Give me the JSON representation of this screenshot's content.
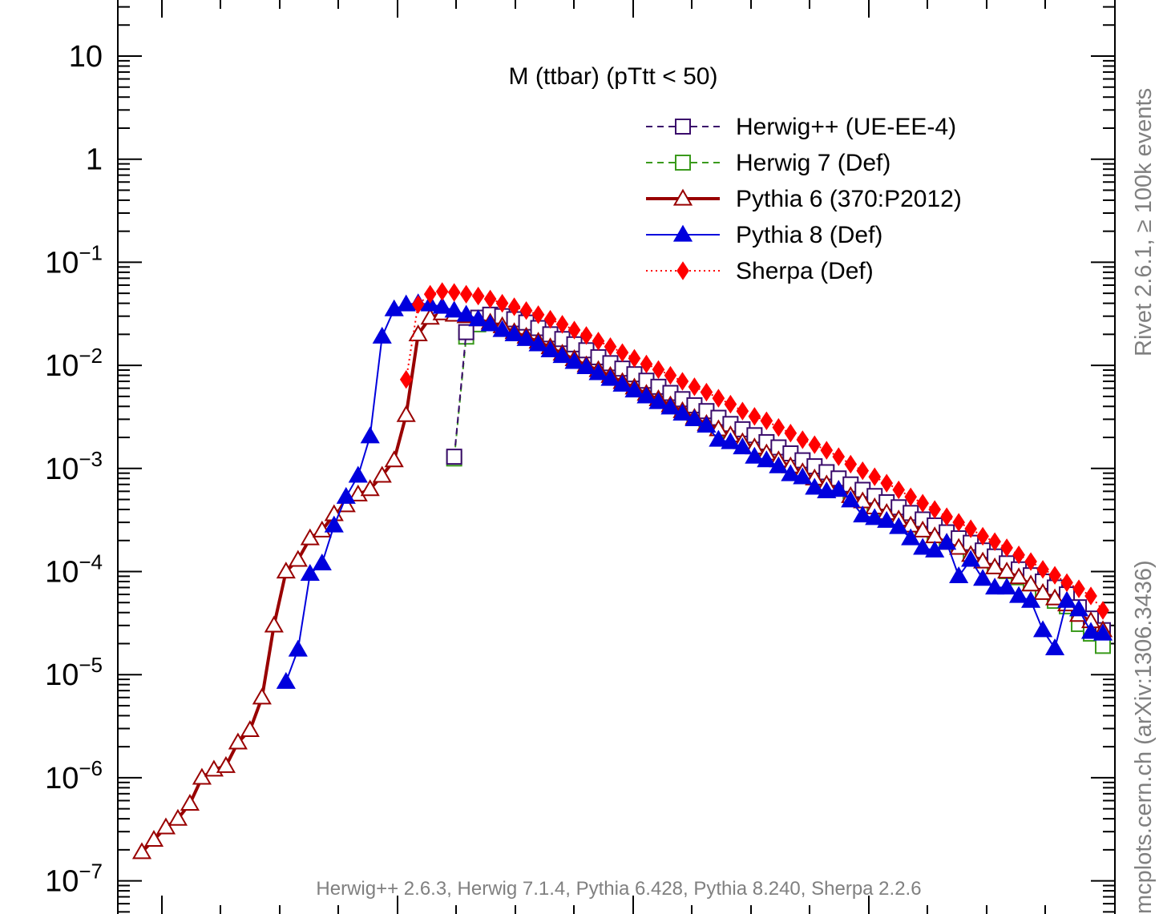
{
  "chart_data": {
    "type": "line",
    "title": "M (ttbar) (pTtt < 50)",
    "yscale": "log",
    "ylim": [
      6e-08,
      20
    ],
    "xlim": [
      0,
      41.5
    ],
    "y_tick_labels": [
      {
        "mant": "10",
        "exp": "",
        "value": 10
      },
      {
        "mant": "1",
        "exp": "",
        "value": 1
      },
      {
        "mant": "10",
        "exp": "−1",
        "value": 0.1
      },
      {
        "mant": "10",
        "exp": "−2",
        "value": 0.01
      },
      {
        "mant": "10",
        "exp": "−3",
        "value": 0.001
      },
      {
        "mant": "10",
        "exp": "−4",
        "value": 0.0001
      },
      {
        "mant": "10",
        "exp": "−5",
        "value": 1e-05
      },
      {
        "mant": "10",
        "exp": "−6",
        "value": 1e-06
      },
      {
        "mant": "10",
        "exp": "−7",
        "value": 1e-07
      }
    ],
    "legend_position": "top-right",
    "series": [
      {
        "name": "Herwig++ (UE-EE-4)",
        "color": "#3a0b6b",
        "dash": "8,6",
        "width": 2,
        "marker": "square-open",
        "x": [
          14.0,
          14.5,
          15.0,
          15.5,
          16.0,
          16.5,
          17.0,
          17.5,
          18.0,
          18.5,
          19.0,
          19.5,
          20.0,
          20.5,
          21.0,
          21.5,
          22.0,
          22.5,
          23.0,
          23.5,
          24.0,
          24.5,
          25.0,
          25.5,
          26.0,
          26.5,
          27.0,
          27.5,
          28.0,
          28.5,
          29.0,
          29.5,
          30.0,
          30.5,
          31.0,
          31.5,
          32.0,
          32.5,
          33.0,
          33.5,
          34.0,
          34.5,
          35.0,
          35.5,
          36.0,
          36.5,
          37.0,
          37.5,
          38.0,
          38.5,
          39.0,
          39.5,
          40.0,
          40.5,
          41.0
        ],
        "y": [
          0.0013,
          0.021,
          0.029,
          0.031,
          0.03,
          0.028,
          0.026,
          0.023,
          0.02,
          0.018,
          0.016,
          0.014,
          0.012,
          0.0105,
          0.0093,
          0.0082,
          0.0071,
          0.0062,
          0.0054,
          0.0047,
          0.0041,
          0.0036,
          0.0031,
          0.0027,
          0.0024,
          0.0021,
          0.0018,
          0.0016,
          0.0014,
          0.0012,
          0.00105,
          0.00092,
          0.0008,
          0.0007,
          0.00062,
          0.00054,
          0.00047,
          0.00042,
          0.00037,
          0.00032,
          0.00028,
          0.00024,
          0.00021,
          0.00019,
          0.00016,
          0.00014,
          0.00012,
          0.000105,
          9.2e-05,
          8e-05,
          7e-05,
          6e-05,
          4.5e-05,
          3.5e-05,
          2.7e-05
        ]
      },
      {
        "name": "Herwig 7 (Def)",
        "color": "#3a9a1c",
        "dash": "8,6",
        "width": 2,
        "marker": "square-open",
        "x": [
          14.0,
          14.5,
          15.0,
          15.5,
          16.0,
          16.5,
          17.0,
          17.5,
          18.0,
          18.5,
          19.0,
          19.5,
          20.0,
          20.5,
          21.0,
          21.5,
          22.0,
          22.5,
          23.0,
          23.5,
          24.0,
          24.5,
          25.0,
          25.5,
          26.0,
          26.5,
          27.0,
          27.5,
          28.0,
          28.5,
          29.0,
          29.5,
          30.0,
          30.5,
          31.0,
          31.5,
          32.0,
          32.5,
          33.0,
          33.5,
          34.0,
          34.5,
          35.0,
          35.5,
          36.0,
          36.5,
          37.0,
          37.5,
          38.0,
          38.5,
          39.0,
          39.5,
          40.0,
          40.5,
          41.0
        ],
        "y": [
          0.00125,
          0.019,
          0.025,
          0.026,
          0.025,
          0.023,
          0.021,
          0.019,
          0.017,
          0.015,
          0.013,
          0.0115,
          0.01,
          0.0088,
          0.0077,
          0.0068,
          0.0059,
          0.0052,
          0.0045,
          0.0039,
          0.0034,
          0.003,
          0.0026,
          0.0023,
          0.002,
          0.00175,
          0.00153,
          0.00134,
          0.00117,
          0.00102,
          0.0009,
          0.00078,
          0.00068,
          0.0006,
          0.00052,
          0.00046,
          0.0004,
          0.00035,
          0.00031,
          0.00027,
          0.00023,
          0.0002,
          0.000175,
          0.000153,
          0.000133,
          0.000116,
          0.000101,
          8.8e-05,
          7.7e-05,
          6.7e-05,
          5.2e-05,
          4.6e-05,
          3.1e-05,
          2.5e-05,
          1.9e-05
        ]
      },
      {
        "name": "Pythia 6 (370:P2012)",
        "color": "#990000",
        "dash": "",
        "width": 4,
        "marker": "triangle-open",
        "x": [
          1.0,
          1.5,
          2.0,
          2.5,
          3.0,
          3.5,
          4.0,
          4.5,
          5.0,
          5.5,
          6.0,
          6.5,
          7.0,
          7.5,
          8.0,
          8.5,
          9.0,
          9.5,
          10.0,
          10.5,
          11.0,
          11.5,
          12.0,
          12.5,
          13.0,
          13.5,
          14.0,
          14.5,
          15.0,
          15.5,
          16.0,
          16.5,
          17.0,
          17.5,
          18.0,
          18.5,
          19.0,
          19.5,
          20.0,
          20.5,
          21.0,
          21.5,
          22.0,
          22.5,
          23.0,
          23.5,
          24.0,
          24.5,
          25.0,
          25.5,
          26.0,
          26.5,
          27.0,
          27.5,
          28.0,
          28.5,
          29.0,
          29.5,
          30.0,
          30.5,
          31.0,
          31.5,
          32.0,
          32.5,
          33.0,
          33.5,
          34.0,
          34.5,
          35.0,
          35.5,
          36.0,
          36.5,
          37.0,
          37.5,
          38.0,
          38.5,
          39.0,
          39.5,
          40.0,
          40.5,
          41.0
        ],
        "y": [
          1.9e-07,
          2.5e-07,
          3.3e-07,
          4e-07,
          5.6e-07,
          1e-06,
          1.2e-06,
          1.3e-06,
          2.2e-06,
          2.9e-06,
          6e-06,
          3e-05,
          0.0001,
          0.00013,
          0.00021,
          0.00025,
          0.00036,
          0.00044,
          0.00056,
          0.00063,
          0.00085,
          0.0012,
          0.0033,
          0.02,
          0.029,
          0.032,
          0.031,
          0.03,
          0.028,
          0.026,
          0.024,
          0.021,
          0.019,
          0.017,
          0.015,
          0.013,
          0.0115,
          0.01,
          0.009,
          0.0079,
          0.0069,
          0.0061,
          0.0053,
          0.0047,
          0.0041,
          0.0036,
          0.0031,
          0.0027,
          0.0024,
          0.0021,
          0.0018,
          0.0016,
          0.0014,
          0.0012,
          0.00105,
          0.00092,
          0.0008,
          0.0007,
          0.00062,
          0.00054,
          0.00048,
          0.00042,
          0.00037,
          0.00032,
          0.00028,
          0.00025,
          0.00022,
          0.00019,
          0.00017,
          0.000145,
          0.000125,
          0.00011,
          0.0001,
          8.8e-05,
          7.5e-05,
          6.2e-05,
          5.5e-05,
          4.8e-05,
          3.8e-05,
          3.3e-05,
          2.7e-05
        ]
      },
      {
        "name": "Pythia 8 (Def)",
        "color": "#0000dd",
        "dash": "",
        "width": 2,
        "marker": "triangle-filled",
        "x": [
          7.0,
          7.5,
          8.0,
          8.5,
          9.0,
          9.5,
          10.0,
          10.5,
          11.0,
          11.5,
          12.0,
          12.5,
          13.0,
          13.5,
          14.0,
          14.5,
          15.0,
          15.5,
          16.0,
          16.5,
          17.0,
          17.5,
          18.0,
          18.5,
          19.0,
          19.5,
          20.0,
          20.5,
          21.0,
          21.5,
          22.0,
          22.5,
          23.0,
          23.5,
          24.0,
          24.5,
          25.0,
          25.5,
          26.0,
          26.5,
          27.0,
          27.5,
          28.0,
          28.5,
          29.0,
          29.5,
          30.0,
          30.5,
          31.0,
          31.5,
          32.0,
          32.5,
          33.0,
          33.5,
          34.0,
          34.5,
          35.0,
          35.5,
          36.0,
          36.5,
          37.0,
          37.5,
          38.0,
          38.5,
          39.0,
          39.5,
          40.0,
          40.5,
          41.0
        ],
        "y": [
          8.5e-06,
          1.75e-05,
          9.5e-05,
          0.00012,
          0.00028,
          0.00053,
          0.00085,
          0.00205,
          0.019,
          0.035,
          0.039,
          0.04,
          0.039,
          0.037,
          0.034,
          0.031,
          0.028,
          0.025,
          0.022,
          0.02,
          0.018,
          0.016,
          0.014,
          0.0123,
          0.0108,
          0.0096,
          0.0084,
          0.0074,
          0.0065,
          0.0057,
          0.005,
          0.0044,
          0.0039,
          0.0034,
          0.003,
          0.0026,
          0.0019,
          0.0018,
          0.0016,
          0.0013,
          0.0012,
          0.00105,
          0.00088,
          0.00082,
          0.00065,
          0.0006,
          0.00062,
          0.00049,
          0.00035,
          0.00033,
          0.00031,
          0.00027,
          0.00021,
          0.00017,
          0.00016,
          0.00019,
          9e-05,
          0.00013,
          8.5e-05,
          7e-05,
          7e-05,
          5.8e-05,
          5.2e-05,
          2.7e-05,
          1.8e-05,
          5.2e-05,
          4.3e-05,
          2.6e-05,
          2.5e-05
        ]
      },
      {
        "name": "Sherpa (Def)",
        "color": "#ff0000",
        "dash": "2,4",
        "width": 2,
        "marker": "diamond-filled",
        "x": [
          12.0,
          12.5,
          13.0,
          13.5,
          14.0,
          14.5,
          15.0,
          15.5,
          16.0,
          16.5,
          17.0,
          17.5,
          18.0,
          18.5,
          19.0,
          19.5,
          20.0,
          20.5,
          21.0,
          21.5,
          22.0,
          22.5,
          23.0,
          23.5,
          24.0,
          24.5,
          25.0,
          25.5,
          26.0,
          26.5,
          27.0,
          27.5,
          28.0,
          28.5,
          29.0,
          29.5,
          30.0,
          30.5,
          31.0,
          31.5,
          32.0,
          32.5,
          33.0,
          33.5,
          34.0,
          34.5,
          35.0,
          35.5,
          36.0,
          36.5,
          37.0,
          37.5,
          38.0,
          38.5,
          39.0,
          39.5,
          40.0,
          40.5,
          41.0
        ],
        "y": [
          0.0073,
          0.039,
          0.049,
          0.052,
          0.051,
          0.049,
          0.047,
          0.044,
          0.04,
          0.037,
          0.034,
          0.031,
          0.028,
          0.025,
          0.022,
          0.0195,
          0.0172,
          0.0152,
          0.0133,
          0.0117,
          0.0103,
          0.0091,
          0.008,
          0.007,
          0.0062,
          0.0055,
          0.0048,
          0.0042,
          0.0036,
          0.0032,
          0.0029,
          0.0025,
          0.0022,
          0.0019,
          0.0017,
          0.0015,
          0.0013,
          0.0011,
          0.00095,
          0.00083,
          0.00072,
          0.00062,
          0.00053,
          0.00046,
          0.0004,
          0.00034,
          0.0003,
          0.00026,
          0.00022,
          0.000195,
          0.00017,
          0.000145,
          0.000125,
          0.000105,
          9.2e-05,
          7.8e-05,
          6.8e-05,
          5.8e-05,
          4.2e-05
        ]
      }
    ],
    "annotations": {
      "footnote": "Herwig++ 2.6.3, Herwig 7.1.4, Pythia 6.428, Pythia 8.240, Sherpa 2.2.6",
      "side_top": "Rivet 2.6.1,  ≥ 100k events",
      "side_bottom": "mcplots.cern.ch (arXiv:1306.3436)"
    }
  }
}
